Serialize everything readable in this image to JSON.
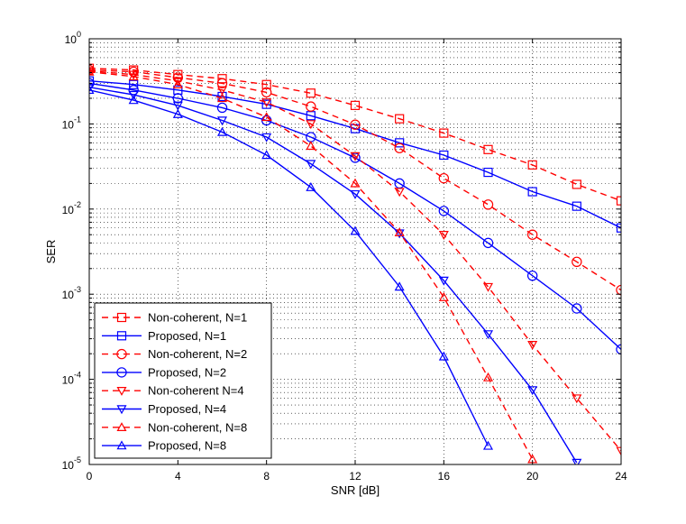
{
  "chart_data": {
    "type": "line",
    "title": "",
    "xlabel": "SNR [dB]",
    "ylabel": "SER",
    "xlim": [
      0,
      24
    ],
    "ylim_log10": [
      -5,
      0
    ],
    "yscale": "log",
    "grid": true,
    "legend_position": "bottom-left",
    "x_ticks": [
      0,
      4,
      8,
      12,
      16,
      20,
      24
    ],
    "x_tick_labels": [
      "0",
      "4",
      "8",
      "12",
      "16",
      "20",
      "24"
    ],
    "y_tick_labels": [
      {
        "base": "10",
        "exp": "-5"
      },
      {
        "base": "10",
        "exp": "-4"
      },
      {
        "base": "10",
        "exp": "-3"
      },
      {
        "base": "10",
        "exp": "-2"
      },
      {
        "base": "10",
        "exp": "-1"
      },
      {
        "base": "10",
        "exp": "0"
      }
    ],
    "colors": {
      "red": "#ff0000",
      "blue": "#0000ff",
      "grid": "#000000"
    },
    "series": [
      {
        "name": "Non-coherent, N=1",
        "color": "red",
        "dashed": true,
        "marker": "square",
        "points": [
          [
            0,
            0.45
          ],
          [
            2,
            0.43
          ],
          [
            4,
            0.38
          ],
          [
            6,
            0.34
          ],
          [
            8,
            0.29
          ],
          [
            10,
            0.23
          ],
          [
            12,
            0.165
          ],
          [
            14,
            0.115
          ],
          [
            16,
            0.078
          ],
          [
            18,
            0.05
          ],
          [
            20,
            0.033
          ],
          [
            22,
            0.0195
          ],
          [
            24,
            0.0125
          ]
        ]
      },
      {
        "name": "Proposed, N=1",
        "color": "blue",
        "dashed": false,
        "marker": "square",
        "points": [
          [
            0,
            0.32
          ],
          [
            2,
            0.29
          ],
          [
            4,
            0.25
          ],
          [
            6,
            0.21
          ],
          [
            8,
            0.17
          ],
          [
            10,
            0.125
          ],
          [
            12,
            0.088
          ],
          [
            14,
            0.06
          ],
          [
            16,
            0.043
          ],
          [
            18,
            0.027
          ],
          [
            20,
            0.016
          ],
          [
            22,
            0.0108
          ],
          [
            24,
            0.006
          ]
        ]
      },
      {
        "name": "Non-coherent, N=2",
        "color": "red",
        "dashed": true,
        "marker": "circle",
        "points": [
          [
            0,
            0.43
          ],
          [
            2,
            0.41
          ],
          [
            4,
            0.35
          ],
          [
            6,
            0.3
          ],
          [
            8,
            0.235
          ],
          [
            10,
            0.16
          ],
          [
            12,
            0.098
          ],
          [
            14,
            0.052
          ],
          [
            16,
            0.023
          ],
          [
            18,
            0.0113
          ],
          [
            20,
            0.005
          ],
          [
            22,
            0.0024
          ],
          [
            24,
            0.00112
          ]
        ]
      },
      {
        "name": "Proposed, N=2",
        "color": "blue",
        "dashed": false,
        "marker": "circle",
        "points": [
          [
            0,
            0.3
          ],
          [
            2,
            0.25
          ],
          [
            4,
            0.2
          ],
          [
            6,
            0.155
          ],
          [
            8,
            0.11
          ],
          [
            10,
            0.07
          ],
          [
            12,
            0.04
          ],
          [
            14,
            0.02
          ],
          [
            16,
            0.0095
          ],
          [
            18,
            0.004
          ],
          [
            20,
            0.00165
          ],
          [
            22,
            0.00068
          ],
          [
            24,
            0.000225
          ]
        ]
      },
      {
        "name": "Non-coherent N=4",
        "color": "red",
        "dashed": true,
        "marker": "triangle-down",
        "points": [
          [
            0,
            0.42
          ],
          [
            2,
            0.38
          ],
          [
            4,
            0.32
          ],
          [
            6,
            0.25
          ],
          [
            8,
            0.18
          ],
          [
            10,
            0.1
          ],
          [
            12,
            0.042
          ],
          [
            14,
            0.016
          ],
          [
            16,
            0.005
          ],
          [
            18,
            0.00122
          ],
          [
            20,
            0.000255
          ],
          [
            22,
            6e-05
          ],
          [
            24,
            1.45e-05
          ]
        ]
      },
      {
        "name": "Proposed, N=4",
        "color": "blue",
        "dashed": false,
        "marker": "triangle-down",
        "points": [
          [
            0,
            0.27
          ],
          [
            2,
            0.22
          ],
          [
            4,
            0.165
          ],
          [
            6,
            0.11
          ],
          [
            8,
            0.07
          ],
          [
            10,
            0.034
          ],
          [
            12,
            0.015
          ],
          [
            14,
            0.0052
          ],
          [
            16,
            0.00145
          ],
          [
            18,
            0.00034
          ],
          [
            20,
            7.5e-05
          ],
          [
            22,
            1.05e-05
          ]
        ]
      },
      {
        "name": "Non-coherent, N=8",
        "color": "red",
        "dashed": true,
        "marker": "triangle-up",
        "points": [
          [
            0,
            0.41
          ],
          [
            2,
            0.36
          ],
          [
            4,
            0.29
          ],
          [
            6,
            0.2
          ],
          [
            8,
            0.12
          ],
          [
            10,
            0.055
          ],
          [
            12,
            0.02
          ],
          [
            14,
            0.0053
          ],
          [
            16,
            0.00092
          ],
          [
            18,
            0.000105
          ],
          [
            20,
            1.15e-05
          ]
        ]
      },
      {
        "name": "Proposed, N=8",
        "color": "blue",
        "dashed": false,
        "marker": "triangle-up",
        "points": [
          [
            0,
            0.25
          ],
          [
            2,
            0.19
          ],
          [
            4,
            0.13
          ],
          [
            6,
            0.08
          ],
          [
            8,
            0.043
          ],
          [
            10,
            0.018
          ],
          [
            12,
            0.0055
          ],
          [
            14,
            0.00122
          ],
          [
            16,
            0.000185
          ],
          [
            18,
            1.65e-05
          ]
        ]
      }
    ]
  }
}
